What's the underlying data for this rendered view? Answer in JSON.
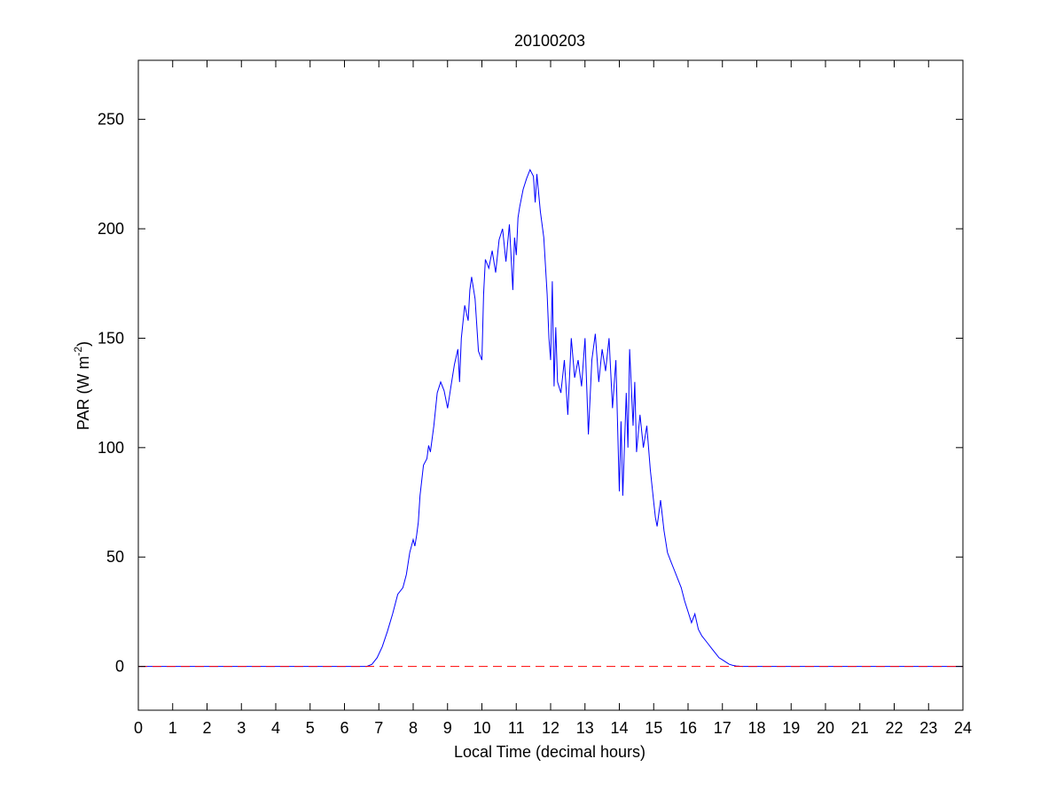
{
  "chart_data": {
    "type": "line",
    "title": "20100203",
    "xlabel": "Local Time (decimal hours)",
    "ylabel": "PAR (W m",
    "ylabel_sup": "-2",
    "ylabel_close": ")",
    "xlim": [
      0,
      24
    ],
    "ylim": [
      -20,
      277
    ],
    "xticks": [
      0,
      1,
      2,
      3,
      4,
      5,
      6,
      7,
      8,
      9,
      10,
      11,
      12,
      13,
      14,
      15,
      16,
      17,
      18,
      19,
      20,
      21,
      22,
      23,
      24
    ],
    "xtick_labels": [
      "0",
      "1",
      "2",
      "3",
      "4",
      "5",
      "6",
      "7",
      "8",
      "9",
      "10",
      "11",
      "12",
      "13",
      "14",
      "15",
      "16",
      "17",
      "18",
      "19",
      "20",
      "21",
      "22",
      "23",
      "24"
    ],
    "yticks": [
      0,
      50,
      100,
      150,
      200,
      250
    ],
    "ytick_labels": [
      "0",
      "50",
      "100",
      "150",
      "200",
      "250"
    ],
    "grid": false,
    "legend": "none",
    "colors": {
      "series": "#0000ff",
      "baseline": "#ff0000",
      "axes": "#000000"
    },
    "series": [
      {
        "style": "solid",
        "color": "#0000ff",
        "x": [
          0,
          6.65,
          6.8,
          6.95,
          7.1,
          7.25,
          7.4,
          7.55,
          7.7,
          7.8,
          7.9,
          8.0,
          8.05,
          8.1,
          8.15,
          8.2,
          8.3,
          8.4,
          8.45,
          8.5,
          8.6,
          8.7,
          8.8,
          8.9,
          9.0,
          9.1,
          9.2,
          9.3,
          9.35,
          9.4,
          9.5,
          9.6,
          9.65,
          9.7,
          9.8,
          9.9,
          10.0,
          10.05,
          10.1,
          10.2,
          10.3,
          10.4,
          10.5,
          10.6,
          10.7,
          10.8,
          10.9,
          10.95,
          11.0,
          11.05,
          11.1,
          11.2,
          11.3,
          11.4,
          11.5,
          11.55,
          11.6,
          11.7,
          11.8,
          11.9,
          11.95,
          12.0,
          12.05,
          12.1,
          12.15,
          12.2,
          12.3,
          12.4,
          12.5,
          12.6,
          12.7,
          12.8,
          12.9,
          13.0,
          13.1,
          13.2,
          13.3,
          13.4,
          13.5,
          13.6,
          13.7,
          13.8,
          13.9,
          14.0,
          14.05,
          14.1,
          14.2,
          14.25,
          14.3,
          14.4,
          14.45,
          14.5,
          14.6,
          14.7,
          14.8,
          14.9,
          15.0,
          15.05,
          15.1,
          15.2,
          15.3,
          15.4,
          15.5,
          15.6,
          15.7,
          15.8,
          15.9,
          16.0,
          16.1,
          16.2,
          16.3,
          16.4,
          16.5,
          16.6,
          16.7,
          16.8,
          16.9,
          17.0,
          17.1,
          17.2,
          17.3,
          17.4,
          17.5,
          17.6,
          17.7,
          18.0,
          24.0
        ],
        "y": [
          0,
          0,
          1,
          4,
          9,
          16,
          24,
          33,
          36,
          42,
          52,
          58,
          55,
          60,
          66,
          78,
          92,
          95,
          101,
          98,
          110,
          125,
          130,
          126,
          118,
          128,
          138,
          145,
          130,
          150,
          165,
          158,
          172,
          178,
          168,
          144,
          140,
          170,
          186,
          182,
          190,
          180,
          195,
          200,
          185,
          202,
          172,
          196,
          188,
          205,
          210,
          218,
          223,
          227,
          224,
          212,
          225,
          208,
          196,
          170,
          150,
          140,
          176,
          128,
          155,
          130,
          125,
          140,
          115,
          150,
          132,
          140,
          128,
          150,
          106,
          140,
          152,
          130,
          145,
          135,
          150,
          118,
          140,
          80,
          112,
          78,
          125,
          100,
          145,
          110,
          130,
          98,
          115,
          100,
          110,
          90,
          75,
          68,
          64,
          76,
          62,
          52,
          48,
          44,
          40,
          36,
          30,
          25,
          20,
          24,
          17,
          14,
          12,
          10,
          8,
          6,
          4,
          3,
          2,
          1,
          0.5,
          0.2,
          0.1,
          0,
          0,
          0,
          0
        ]
      },
      {
        "style": "dashed",
        "color": "#ff0000",
        "x": [
          0,
          24
        ],
        "y": [
          0,
          0
        ]
      }
    ]
  }
}
